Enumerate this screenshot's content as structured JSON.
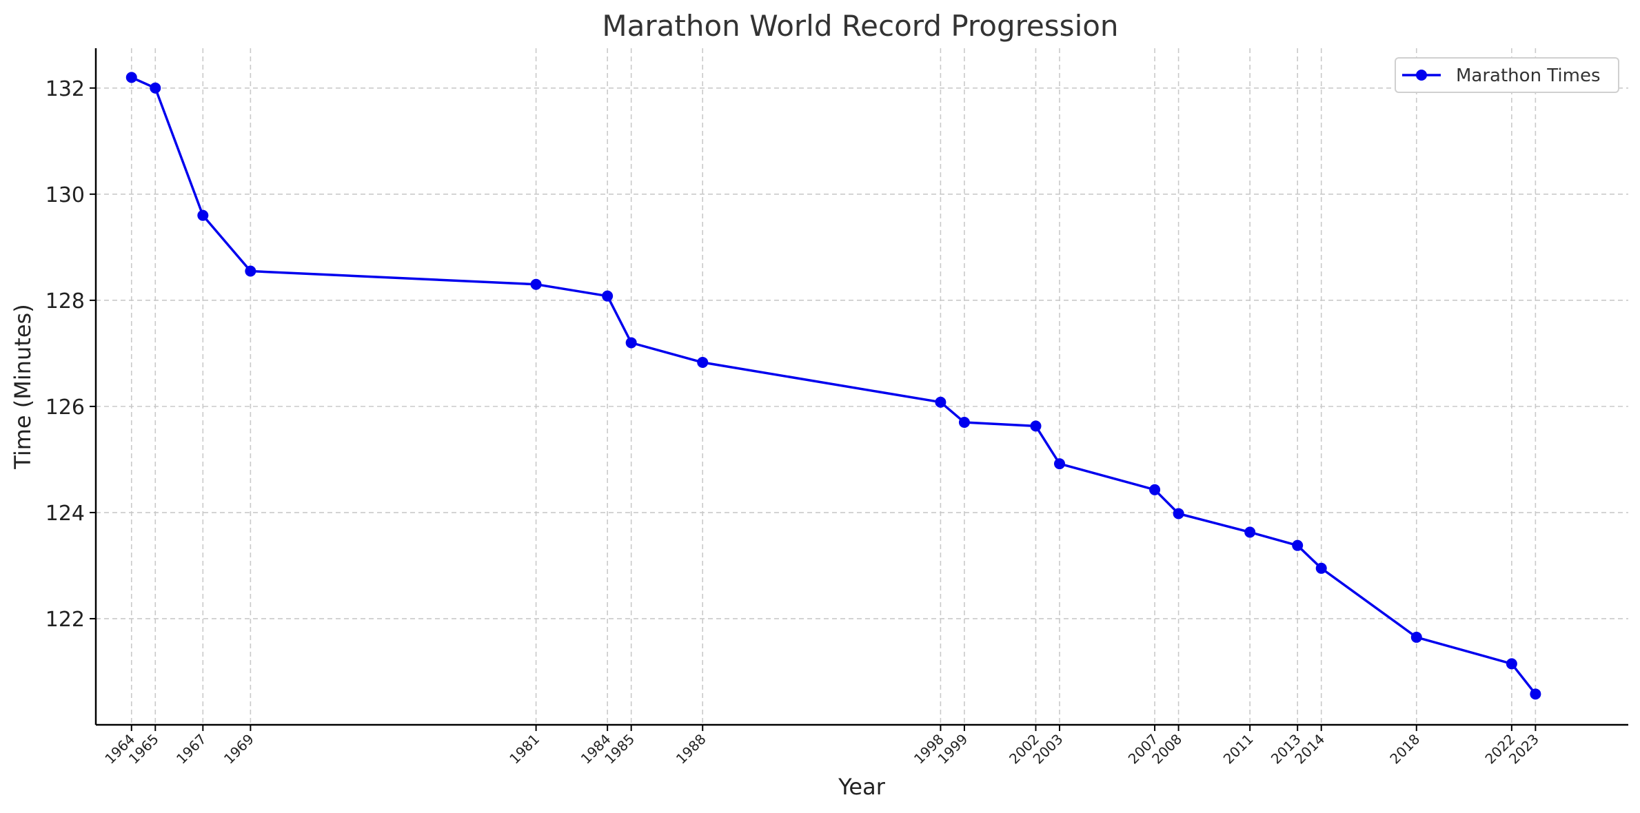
{
  "chart_data": {
    "type": "line",
    "title": "Marathon World Record Progression",
    "xlabel": "Year",
    "ylabel": "Time (Minutes)",
    "x": [
      1964,
      1965,
      1967,
      1969,
      1981,
      1984,
      1985,
      1988,
      1998,
      1999,
      2002,
      2003,
      2007,
      2008,
      2011,
      2013,
      2014,
      2018,
      2022,
      2023
    ],
    "series": [
      {
        "name": "Marathon Times",
        "color": "#0000ee",
        "values": [
          132.2,
          132.0,
          129.6,
          128.55,
          128.3,
          128.08,
          127.2,
          126.83,
          126.08,
          125.7,
          125.63,
          124.92,
          124.43,
          123.98,
          123.63,
          123.38,
          122.95,
          121.65,
          121.15,
          120.58
        ]
      }
    ],
    "xlim": [
      1962.5,
      2026.9
    ],
    "ylim": [
      120.0,
      132.75
    ],
    "yticks": [
      122,
      124,
      126,
      128,
      130,
      132
    ],
    "grid": true,
    "legend": "top-right"
  }
}
